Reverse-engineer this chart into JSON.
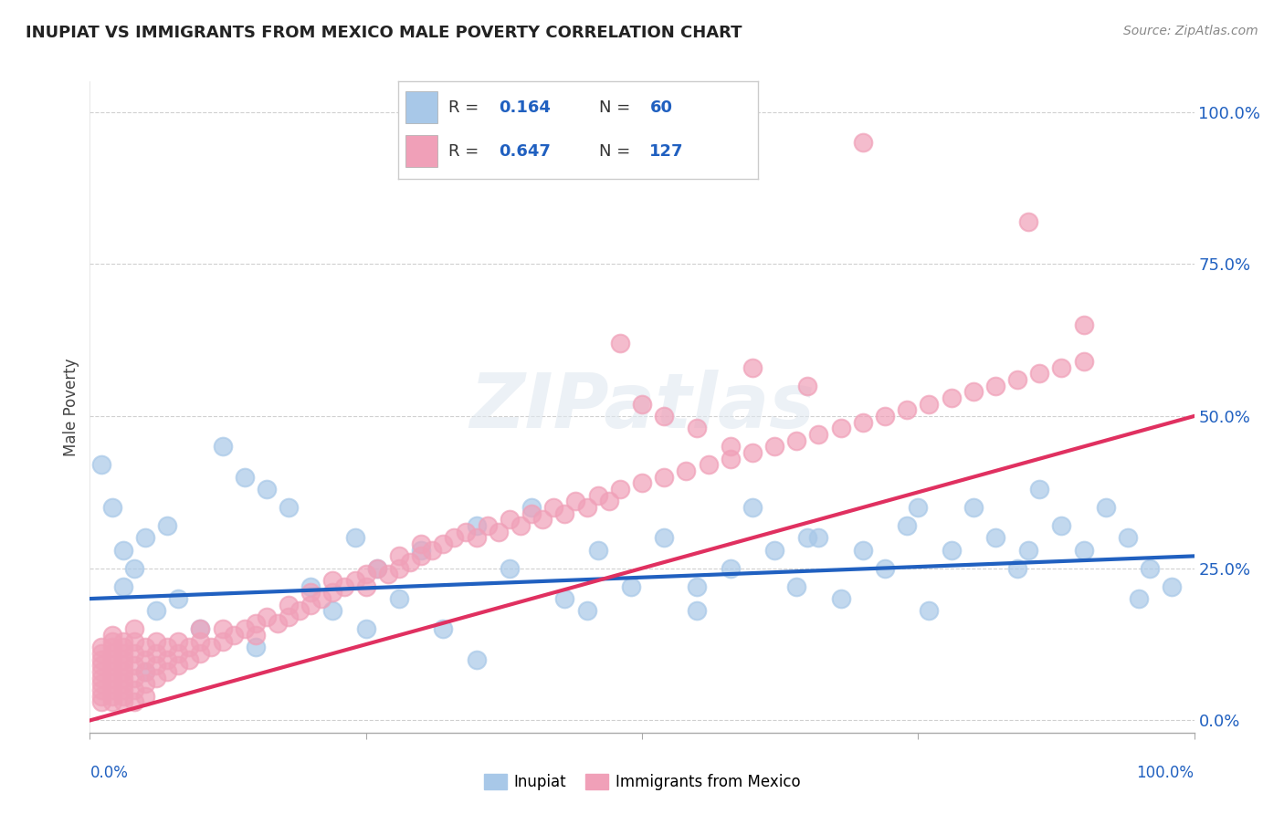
{
  "title": "INUPIAT VS IMMIGRANTS FROM MEXICO MALE POVERTY CORRELATION CHART",
  "source": "Source: ZipAtlas.com",
  "ylabel": "Male Poverty",
  "legend_labels": [
    "Inupiat",
    "Immigrants from Mexico"
  ],
  "r1": 0.164,
  "n1": 60,
  "r2": 0.647,
  "n2": 127,
  "color_blue": "#a8c8e8",
  "color_pink": "#f0a0b8",
  "line_color_blue": "#2060c0",
  "line_color_pink": "#e03060",
  "background_color": "#ffffff",
  "grid_color": "#d0d0d0",
  "xlim": [
    0,
    1
  ],
  "ylim": [
    0,
    1
  ],
  "ytick_labels": [
    "0.0%",
    "25.0%",
    "50.0%",
    "75.0%",
    "100.0%"
  ],
  "ytick_values": [
    0,
    0.25,
    0.5,
    0.75,
    1.0
  ],
  "blue_line_x0": 0.0,
  "blue_line_y0": 0.2,
  "blue_line_x1": 1.0,
  "blue_line_y1": 0.27,
  "pink_line_x0": 0.0,
  "pink_line_y0": 0.0,
  "pink_line_x1": 1.0,
  "pink_line_y1": 0.5
}
